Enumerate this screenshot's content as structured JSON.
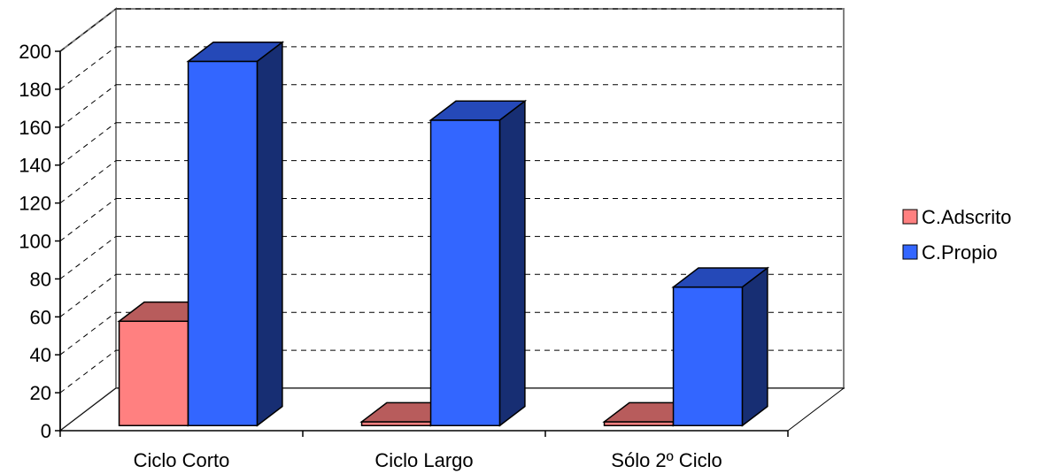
{
  "chart_data": {
    "type": "bar",
    "categories": [
      "Ciclo Corto",
      "Ciclo Largo",
      "Sólo 2º Ciclo"
    ],
    "series": [
      {
        "name": "C.Adscrito",
        "values": [
          55,
          2,
          2
        ],
        "color": "#ff8080"
      },
      {
        "name": "C.Propio",
        "values": [
          192,
          161,
          73
        ],
        "color": "#3366ff"
      }
    ],
    "ylim": [
      0,
      200
    ],
    "yticks": [
      0,
      20,
      40,
      60,
      80,
      100,
      120,
      140,
      160,
      180,
      200
    ],
    "grid": true,
    "legend": "right",
    "title": "",
    "xlabel": "",
    "ylabel": ""
  }
}
